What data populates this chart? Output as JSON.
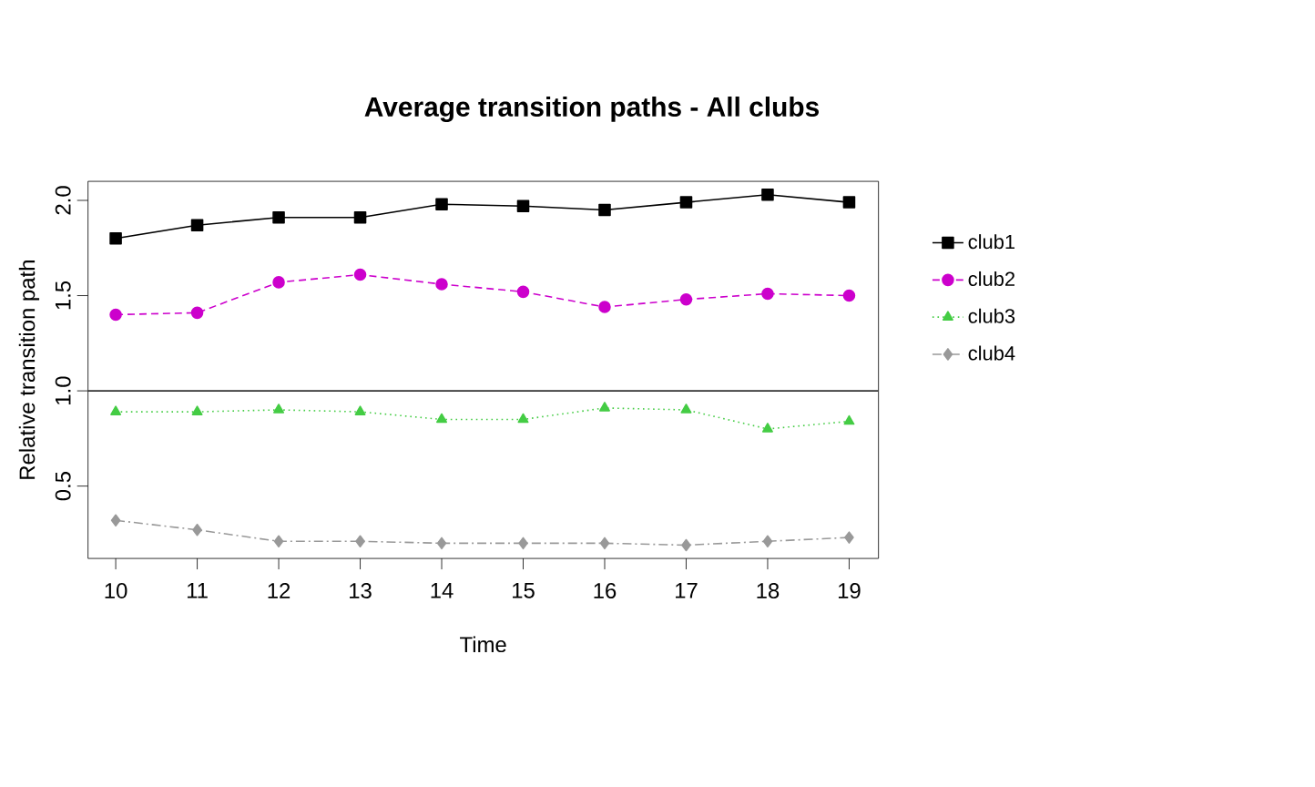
{
  "chart_data": {
    "type": "line",
    "title": "Average transition paths - All clubs",
    "xlabel": "Time",
    "ylabel": "Relative transition path",
    "x": [
      10,
      11,
      12,
      13,
      14,
      15,
      16,
      17,
      18,
      19
    ],
    "series": [
      {
        "name": "club1",
        "color": "#000000",
        "marker": "square",
        "line_style": "solid",
        "values": [
          1.8,
          1.87,
          1.91,
          1.91,
          1.98,
          1.97,
          1.95,
          1.99,
          2.03,
          1.99
        ]
      },
      {
        "name": "club2",
        "color": "#cc00cc",
        "marker": "circle",
        "line_style": "dashed",
        "values": [
          1.4,
          1.41,
          1.57,
          1.61,
          1.56,
          1.52,
          1.44,
          1.48,
          1.51,
          1.5
        ]
      },
      {
        "name": "club3",
        "color": "#44cc44",
        "marker": "triangle",
        "line_style": "dotted",
        "values": [
          0.89,
          0.89,
          0.9,
          0.89,
          0.85,
          0.85,
          0.91,
          0.9,
          0.8,
          0.84
        ]
      },
      {
        "name": "club4",
        "color": "#999999",
        "marker": "diamond",
        "line_style": "dashdot",
        "values": [
          0.32,
          0.27,
          0.21,
          0.21,
          0.2,
          0.2,
          0.2,
          0.19,
          0.21,
          0.23
        ]
      }
    ],
    "xlim": [
      9.66,
      19.36
    ],
    "ylim": [
      0.12,
      2.1
    ],
    "xticks": [
      10,
      11,
      12,
      13,
      14,
      15,
      16,
      17,
      18,
      19
    ],
    "yticks": [
      {
        "value": 0.5,
        "label": "0.5"
      },
      {
        "value": 1.0,
        "label": "1.0"
      },
      {
        "value": 1.5,
        "label": "1.5"
      },
      {
        "value": 2.0,
        "label": "2.0"
      }
    ],
    "ref_lines": [
      {
        "axis": "y",
        "value": 1.0,
        "color": "#333333",
        "line_style": "solid"
      }
    ],
    "grid": false,
    "legend": "right"
  }
}
